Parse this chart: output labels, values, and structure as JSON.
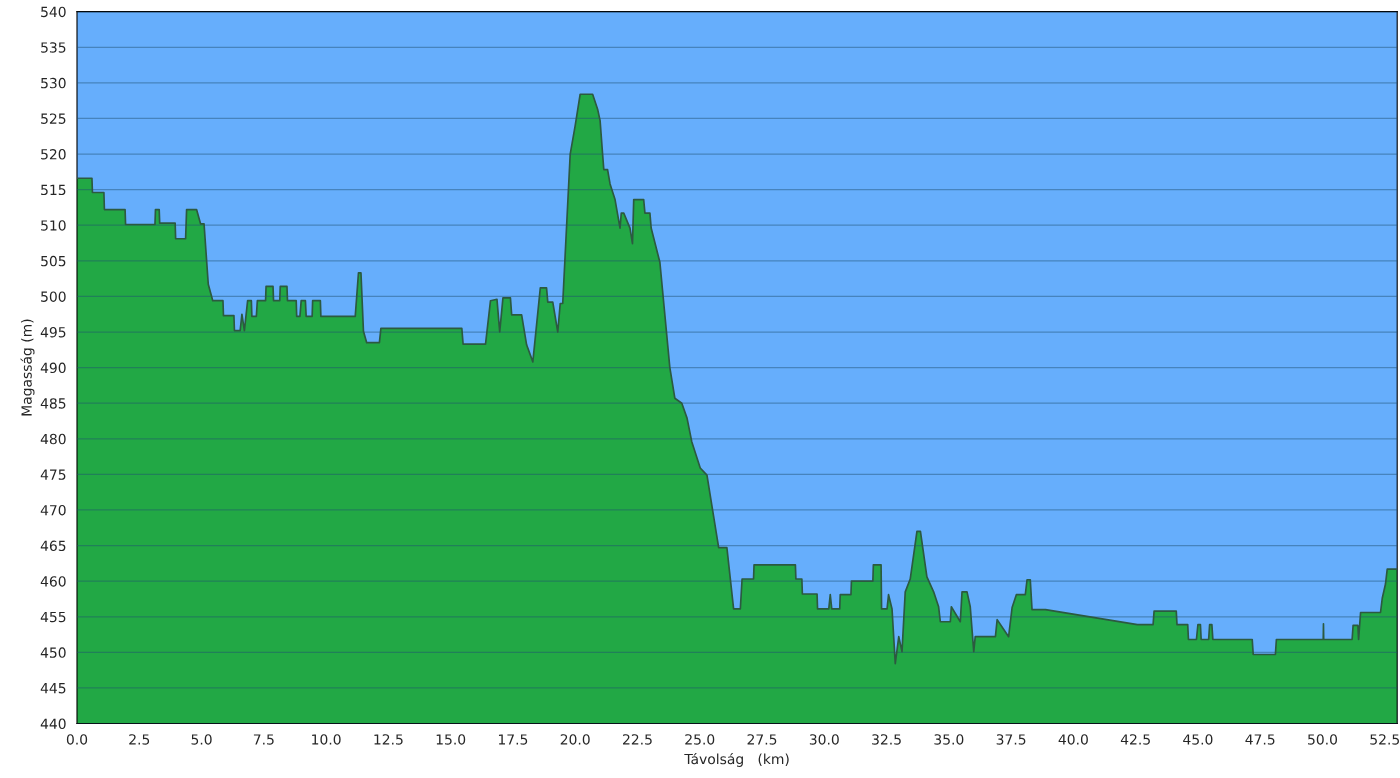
{
  "chart_data": {
    "type": "area",
    "xlabel": "Távolság   (km)",
    "ylabel": "Magasság (m)",
    "series": [
      {
        "color": "#22a845",
        "x": [
          0,
          0.6,
          0.62,
          1.08,
          1.1,
          1.93,
          1.95,
          3.13,
          3.15,
          3.3,
          3.32,
          3.94,
          3.96,
          4.36,
          4.4,
          4.8,
          4.96,
          5.1,
          5.27,
          5.45,
          5.86,
          5.88,
          6.3,
          6.32,
          6.55,
          6.62,
          6.72,
          6.85,
          7.0,
          7.02,
          7.2,
          7.24,
          7.57,
          7.59,
          7.87,
          7.89,
          8.14,
          8.16,
          8.43,
          8.45,
          8.8,
          8.82,
          8.95,
          9.0,
          9.17,
          9.2,
          9.44,
          9.46,
          9.77,
          9.79,
          11.17,
          11.3,
          11.4,
          11.5,
          11.63,
          12.14,
          12.2,
          15.45,
          15.5,
          16.4,
          16.6,
          16.86,
          16.97,
          17.1,
          17.4,
          17.45,
          17.85,
          18.05,
          18.3,
          18.6,
          18.85,
          18.9,
          19.1,
          19.3,
          19.4,
          19.5,
          19.8,
          20.0,
          20.2,
          20.7,
          20.9,
          21.0,
          21.1,
          21.15,
          21.3,
          21.4,
          21.6,
          21.8,
          21.85,
          21.95,
          22.2,
          22.3,
          22.35,
          22.75,
          22.8,
          23.0,
          23.05,
          23.4,
          23.8,
          24.0,
          24.28,
          24.49,
          24.68,
          25.02,
          25.29,
          25.76,
          26.09,
          26.36,
          26.63,
          26.7,
          27.16,
          27.18,
          28.84,
          28.86,
          29.1,
          29.12,
          29.71,
          29.73,
          30.18,
          30.24,
          30.3,
          30.62,
          30.64,
          31.07,
          31.09,
          31.95,
          31.97,
          32.28,
          32.3,
          32.52,
          32.58,
          32.72,
          32.85,
          32.99,
          33.12,
          33.25,
          33.45,
          33.72,
          33.86,
          34.12,
          34.39,
          34.59,
          34.66,
          35.06,
          35.1,
          35.46,
          35.53,
          35.73,
          35.86,
          36.0,
          36.06,
          36.87,
          36.94,
          37.4,
          37.54,
          37.71,
          38.07,
          38.14,
          38.27,
          38.34,
          38.88,
          42.57,
          43.2,
          43.24,
          44.13,
          44.16,
          44.59,
          44.62,
          44.94,
          45.0,
          45.1,
          45.13,
          45.43,
          45.47,
          45.56,
          45.6,
          47.18,
          47.22,
          48.11,
          48.15,
          50.03,
          50.04,
          50.05,
          51.19,
          51.23,
          51.42,
          51.45,
          51.53,
          52.33,
          52.4,
          52.53,
          52.6,
          53.0
        ],
        "values": [
          516.6,
          516.6,
          514.6,
          514.6,
          512.2,
          512.2,
          510.1,
          510.1,
          512.2,
          512.2,
          510.3,
          510.3,
          508.1,
          508.1,
          512.2,
          512.2,
          510.2,
          510.2,
          501.7,
          499.4,
          499.4,
          497.3,
          497.3,
          495.2,
          495.2,
          497.5,
          495.2,
          499.4,
          499.4,
          497.2,
          497.2,
          499.4,
          499.4,
          501.4,
          501.4,
          499.4,
          499.4,
          501.4,
          501.4,
          499.4,
          499.4,
          497.2,
          497.2,
          499.4,
          499.4,
          497.2,
          497.2,
          499.4,
          499.4,
          497.2,
          497.2,
          503.3,
          503.3,
          495.1,
          493.5,
          493.5,
          495.5,
          495.5,
          493.3,
          493.3,
          499.4,
          499.6,
          495.0,
          499.8,
          499.8,
          497.4,
          497.4,
          493.2,
          490.8,
          501.2,
          501.2,
          499.2,
          499.2,
          495.0,
          499.0,
          499.0,
          520.0,
          524.0,
          528.4,
          528.4,
          526.3,
          524.7,
          520.0,
          517.8,
          517.8,
          515.8,
          513.6,
          509.6,
          511.7,
          511.7,
          509.6,
          507.4,
          513.6,
          513.6,
          511.7,
          511.7,
          509.6,
          504.8,
          490.0,
          485.7,
          485.0,
          482.9,
          479.6,
          475.9,
          474.9,
          464.7,
          464.7,
          456.1,
          456.1,
          460.3,
          460.3,
          462.3,
          462.3,
          460.3,
          460.3,
          458.2,
          458.2,
          456.1,
          456.1,
          458.1,
          456.1,
          456.1,
          458.1,
          458.1,
          460.0,
          460.0,
          462.3,
          462.3,
          456.1,
          456.1,
          458.1,
          456.1,
          448.4,
          452.2,
          450.1,
          458.5,
          460.3,
          467.0,
          467.0,
          460.6,
          458.5,
          456.4,
          454.3,
          454.3,
          456.4,
          454.3,
          458.5,
          458.5,
          456.4,
          450.1,
          452.2,
          452.2,
          454.6,
          452.2,
          456.3,
          458.1,
          458.1,
          460.2,
          460.2,
          456.0,
          456.0,
          453.9,
          453.9,
          455.8,
          455.8,
          453.9,
          453.9,
          451.8,
          451.8,
          453.9,
          453.9,
          451.8,
          451.8,
          453.9,
          453.9,
          451.8,
          451.8,
          449.7,
          449.7,
          451.8,
          451.8,
          454.0,
          451.8,
          451.8,
          453.8,
          453.8,
          451.8,
          455.6,
          455.6,
          457.6,
          459.6,
          461.7,
          461.7
        ]
      }
    ],
    "xlim": [
      0,
      53.0
    ],
    "ylim": [
      440,
      540
    ],
    "xticks": [
      {
        "value": 0,
        "label": "0.0"
      },
      2.5,
      {
        "value": 5,
        "label": "5.0"
      },
      7.5,
      {
        "value": 10,
        "label": "10.0"
      },
      12.5,
      {
        "value": 15,
        "label": "15.0"
      },
      17.5,
      {
        "value": 20,
        "label": "20.0"
      },
      22.5,
      {
        "value": 25,
        "label": "25.0"
      },
      27.5,
      {
        "value": 30,
        "label": "30.0"
      },
      32.5,
      {
        "value": 35,
        "label": "35.0"
      },
      37.5,
      {
        "value": 40,
        "label": "40.0"
      },
      42.5,
      {
        "value": 45,
        "label": "45.0"
      },
      47.5,
      {
        "value": 50,
        "label": "50.0"
      },
      52.5
    ],
    "yticks": [
      440,
      445,
      450,
      455,
      460,
      465,
      470,
      475,
      480,
      485,
      490,
      495,
      500,
      505,
      510,
      515,
      520,
      525,
      530,
      535,
      540
    ],
    "grid": "y"
  }
}
